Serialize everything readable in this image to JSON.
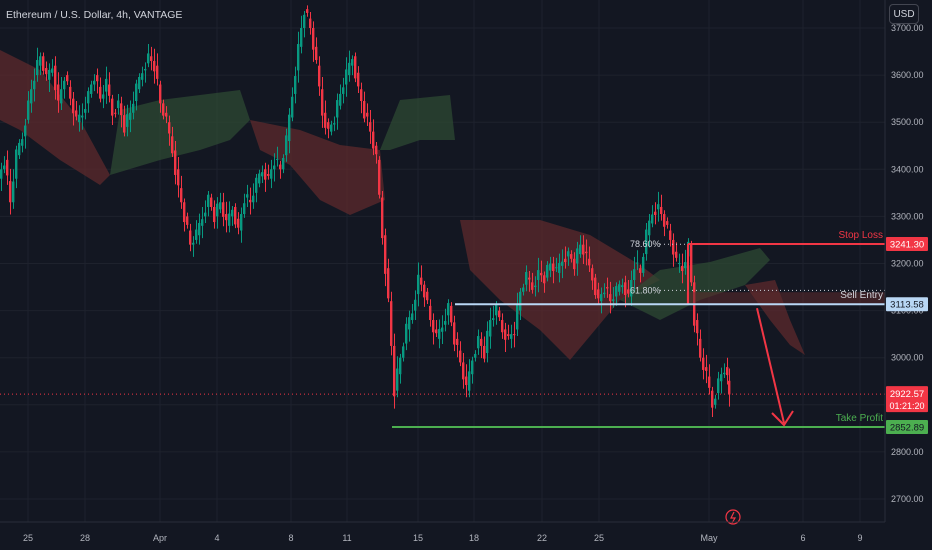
{
  "header": {
    "title": "Ethereum / U.S. Dollar, 4h, VANTAGE",
    "currency": "USD"
  },
  "chart_data": {
    "type": "candlestick",
    "title": "Ethereum / U.S. Dollar, 4h, VANTAGE",
    "ylim": [
      2640,
      3770
    ],
    "y_ticks": [
      "3700.00",
      "3600.00",
      "3500.00",
      "3400.00",
      "3300.00",
      "3200.00",
      "3100.00",
      "3000.00",
      "2900.00",
      "2800.00",
      "2700.00"
    ],
    "x_ticks": [
      "25",
      "28",
      "Apr",
      "4",
      "8",
      "11",
      "15",
      "18",
      "22",
      "25",
      "May",
      "6",
      "9"
    ],
    "levels": {
      "stop_loss": {
        "label": "Stop Loss",
        "value": "3241.30",
        "color": "#f23645"
      },
      "sell_entry": {
        "label": "Sell Entry",
        "value": "3113.58",
        "color": "#b9d7f5"
      },
      "take_profit": {
        "label": "Take Profit",
        "value": "2852.89",
        "color": "#4caf50"
      },
      "current": {
        "value": "2922.57",
        "countdown": "01:21:20",
        "color": "#f23645"
      }
    },
    "fib": [
      {
        "label": "78.60%",
        "value": 3241
      },
      {
        "label": "61.80%",
        "value": 3143
      }
    ],
    "price_path": [
      [
        0,
        3380
      ],
      [
        6,
        3420
      ],
      [
        12,
        3330
      ],
      [
        18,
        3430
      ],
      [
        24,
        3470
      ],
      [
        30,
        3540
      ],
      [
        36,
        3600
      ],
      [
        42,
        3640
      ],
      [
        48,
        3590
      ],
      [
        54,
        3620
      ],
      [
        60,
        3540
      ],
      [
        66,
        3600
      ],
      [
        72,
        3550
      ],
      [
        78,
        3500
      ],
      [
        84,
        3520
      ],
      [
        90,
        3560
      ],
      [
        96,
        3600
      ],
      [
        102,
        3550
      ],
      [
        108,
        3580
      ],
      [
        114,
        3520
      ],
      [
        120,
        3540
      ],
      [
        126,
        3490
      ],
      [
        132,
        3520
      ],
      [
        138,
        3570
      ],
      [
        144,
        3610
      ],
      [
        150,
        3640
      ],
      [
        156,
        3620
      ],
      [
        162,
        3540
      ],
      [
        168,
        3500
      ],
      [
        174,
        3440
      ],
      [
        180,
        3360
      ],
      [
        186,
        3300
      ],
      [
        192,
        3240
      ],
      [
        198,
        3260
      ],
      [
        204,
        3300
      ],
      [
        210,
        3340
      ],
      [
        216,
        3300
      ],
      [
        222,
        3330
      ],
      [
        228,
        3280
      ],
      [
        234,
        3320
      ],
      [
        240,
        3270
      ],
      [
        246,
        3340
      ],
      [
        252,
        3330
      ],
      [
        258,
        3370
      ],
      [
        264,
        3400
      ],
      [
        270,
        3380
      ],
      [
        276,
        3420
      ],
      [
        282,
        3400
      ],
      [
        288,
        3460
      ],
      [
        294,
        3560
      ],
      [
        300,
        3660
      ],
      [
        306,
        3740
      ],
      [
        312,
        3700
      ],
      [
        318,
        3620
      ],
      [
        324,
        3520
      ],
      [
        330,
        3480
      ],
      [
        336,
        3510
      ],
      [
        342,
        3560
      ],
      [
        348,
        3600
      ],
      [
        354,
        3640
      ],
      [
        360,
        3570
      ],
      [
        366,
        3520
      ],
      [
        372,
        3480
      ],
      [
        378,
        3420
      ],
      [
        384,
        3260
      ],
      [
        390,
        3120
      ],
      [
        396,
        2930
      ],
      [
        402,
        3000
      ],
      [
        408,
        3060
      ],
      [
        414,
        3100
      ],
      [
        420,
        3170
      ],
      [
        426,
        3140
      ],
      [
        432,
        3080
      ],
      [
        438,
        3040
      ],
      [
        444,
        3070
      ],
      [
        450,
        3110
      ],
      [
        456,
        3040
      ],
      [
        462,
        2990
      ],
      [
        468,
        2930
      ],
      [
        474,
        3000
      ],
      [
        480,
        3040
      ],
      [
        486,
        3010
      ],
      [
        492,
        3080
      ],
      [
        498,
        3100
      ],
      [
        504,
        3060
      ],
      [
        510,
        3040
      ],
      [
        516,
        3060
      ],
      [
        522,
        3140
      ],
      [
        528,
        3170
      ],
      [
        534,
        3150
      ],
      [
        540,
        3180
      ],
      [
        546,
        3170
      ],
      [
        552,
        3200
      ],
      [
        558,
        3180
      ],
      [
        564,
        3210
      ],
      [
        570,
        3220
      ],
      [
        576,
        3200
      ],
      [
        582,
        3240
      ],
      [
        588,
        3210
      ],
      [
        594,
        3170
      ],
      [
        600,
        3120
      ],
      [
        606,
        3150
      ],
      [
        612,
        3120
      ],
      [
        618,
        3140
      ],
      [
        624,
        3160
      ],
      [
        630,
        3130
      ],
      [
        636,
        3200
      ],
      [
        642,
        3180
      ],
      [
        648,
        3260
      ],
      [
        654,
        3310
      ],
      [
        660,
        3320
      ],
      [
        666,
        3290
      ],
      [
        672,
        3250
      ],
      [
        678,
        3200
      ],
      [
        684,
        3190
      ],
      [
        690,
        3240
      ],
      [
        696,
        3080
      ],
      [
        702,
        3000
      ],
      [
        708,
        2960
      ],
      [
        714,
        2900
      ],
      [
        720,
        2950
      ],
      [
        726,
        2980
      ],
      [
        730,
        2922
      ]
    ]
  }
}
